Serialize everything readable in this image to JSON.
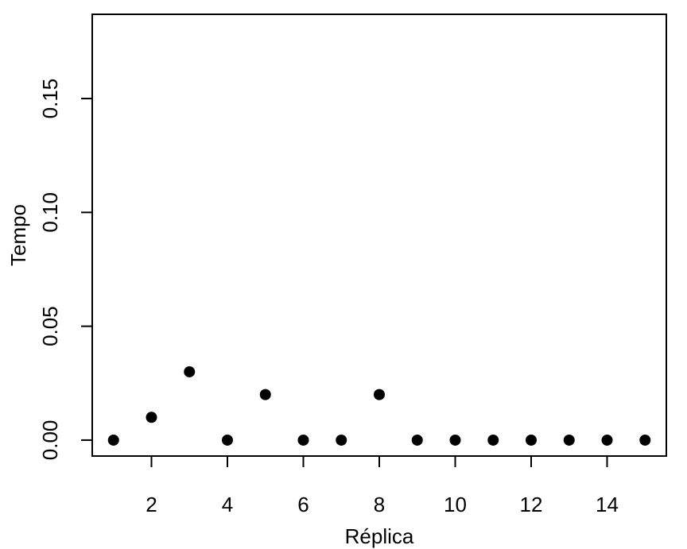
{
  "chart_data": {
    "type": "scatter",
    "title": "",
    "xlabel": "Réplica",
    "ylabel": "Tempo",
    "x": [
      1,
      2,
      3,
      4,
      5,
      6,
      7,
      8,
      9,
      10,
      11,
      12,
      13,
      14,
      15
    ],
    "y": [
      0.0,
      0.01,
      0.03,
      0.0,
      0.02,
      0.0,
      0.0,
      0.02,
      0.0,
      0.0,
      0.0,
      0.0,
      0.0,
      0.0,
      0.0
    ],
    "xlim": [
      0.44,
      15.56
    ],
    "ylim": [
      -0.007,
      0.187
    ],
    "xticks": [
      2,
      4,
      6,
      8,
      10,
      12,
      14
    ],
    "xtick_labels": [
      "2",
      "4",
      "6",
      "8",
      "10",
      "12",
      "14"
    ],
    "yticks": [
      0.0,
      0.05,
      0.1,
      0.15
    ],
    "ytick_labels": [
      "0.00",
      "0.05",
      "0.10",
      "0.15"
    ],
    "grid": false,
    "legend": "none",
    "marker_color": "#000000"
  }
}
